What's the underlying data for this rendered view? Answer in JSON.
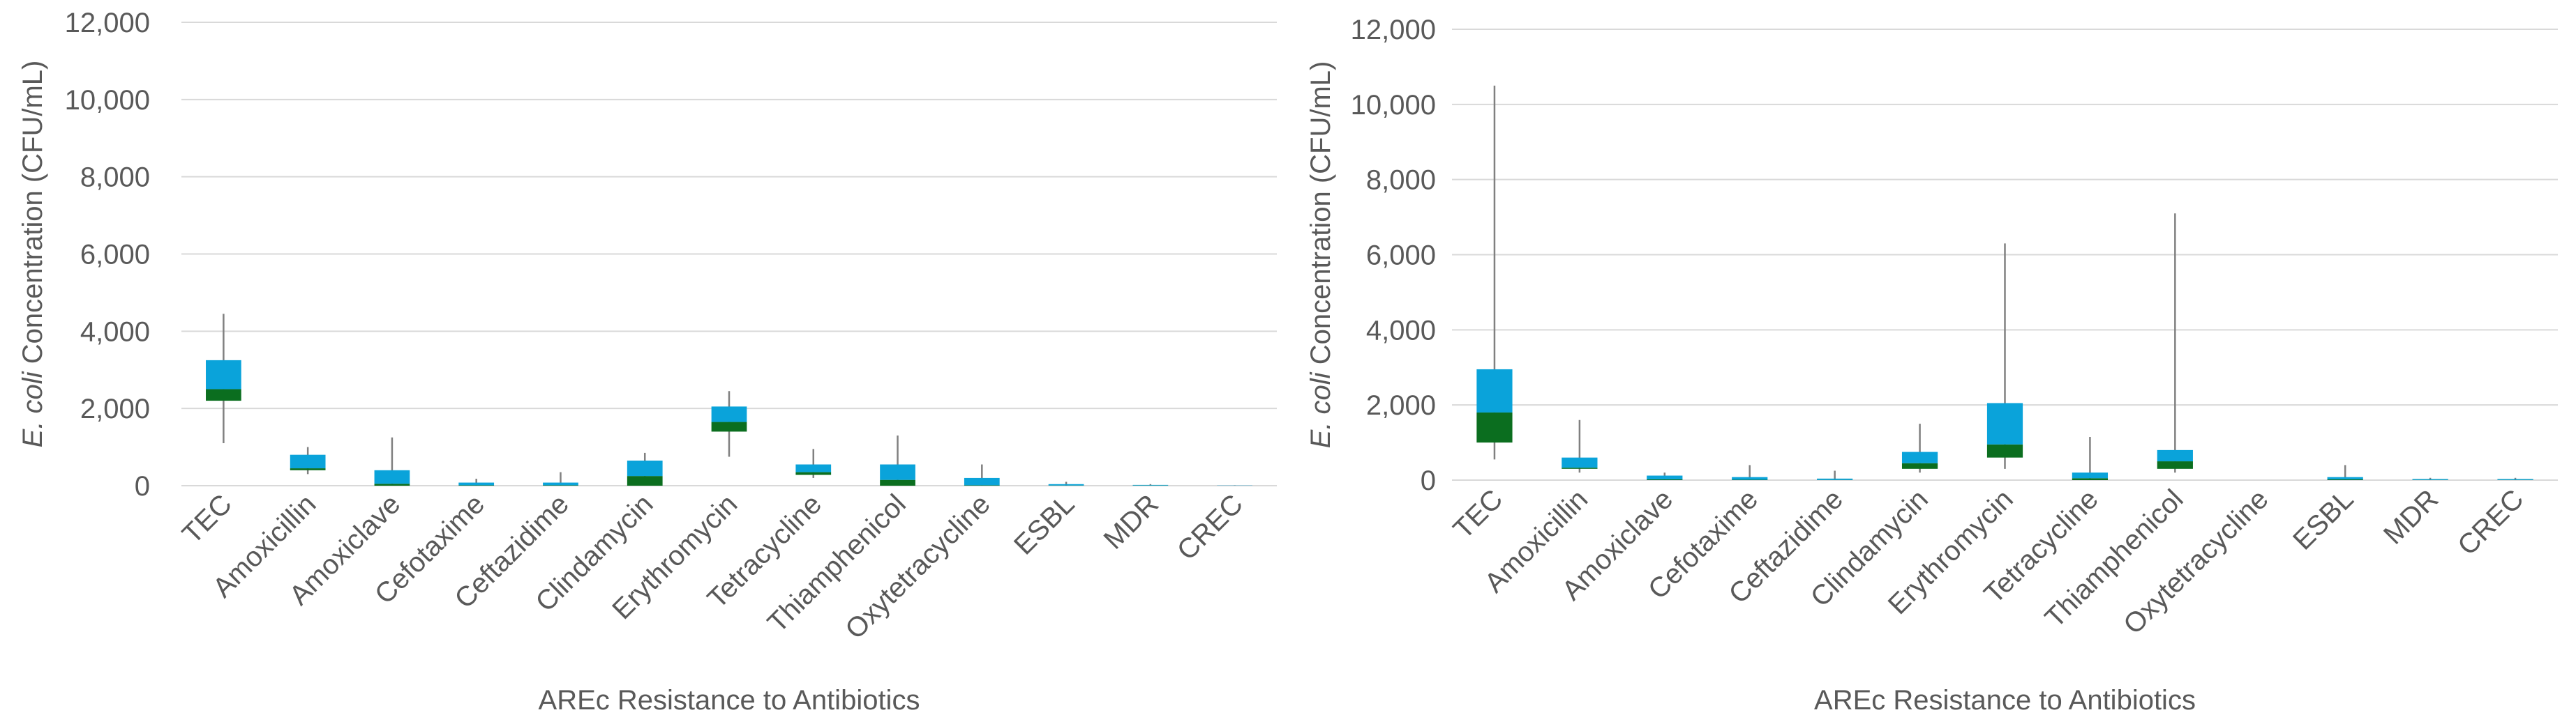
{
  "chart_data": [
    {
      "type": "boxplot",
      "title": "",
      "xlabel": "AREc Resistance to Antibiotics",
      "ylabel_italic": "E. coli",
      "ylabel_rest": " Concentration (CFU/mL)",
      "ylim": [
        0,
        12000
      ],
      "yticks": [
        "0",
        "2,000",
        "4,000",
        "6,000",
        "8,000",
        "10,000",
        "12,000"
      ],
      "ytick_values": [
        0,
        2000,
        4000,
        6000,
        8000,
        10000,
        12000
      ],
      "grid": true,
      "colors": {
        "q1_box": "#0b6e1f",
        "q3_box": "#0aa3da",
        "whisker": "#808080",
        "grid": "#d9d9d9"
      },
      "categories": [
        "TEC",
        "Amoxicillin",
        "Amoxiclave",
        "Cefotaxime",
        "Ceftazidime",
        "Clindamycin",
        "Erythromycin",
        "Tetracycline",
        "Thiamphenicol",
        "Oxytetracycline",
        "ESBL",
        "MDR",
        "CREC"
      ],
      "boxes": [
        {
          "min": 1100,
          "q1": 2200,
          "median": 2500,
          "q3": 3250,
          "max": 4450
        },
        {
          "min": 300,
          "q1": 400,
          "median": 450,
          "q3": 800,
          "max": 1000
        },
        {
          "min": 0,
          "q1": 0,
          "median": 50,
          "q3": 400,
          "max": 1250
        },
        {
          "min": 0,
          "q1": 0,
          "median": 10,
          "q3": 80,
          "max": 180
        },
        {
          "min": 0,
          "q1": 0,
          "median": 10,
          "q3": 80,
          "max": 350
        },
        {
          "min": 0,
          "q1": 0,
          "median": 250,
          "q3": 650,
          "max": 850
        },
        {
          "min": 750,
          "q1": 1400,
          "median": 1650,
          "q3": 2050,
          "max": 2450
        },
        {
          "min": 200,
          "q1": 280,
          "median": 350,
          "q3": 550,
          "max": 950
        },
        {
          "min": 0,
          "q1": 0,
          "median": 150,
          "q3": 550,
          "max": 1300
        },
        {
          "min": 0,
          "q1": 0,
          "median": 10,
          "q3": 200,
          "max": 550
        },
        {
          "min": 0,
          "q1": 0,
          "median": 5,
          "q3": 40,
          "max": 100
        },
        {
          "min": 0,
          "q1": 0,
          "median": 5,
          "q3": 20,
          "max": 40
        },
        {
          "min": 0,
          "q1": 0,
          "median": 0,
          "q3": 5,
          "max": 10
        }
      ]
    },
    {
      "type": "boxplot",
      "title": "",
      "xlabel": "AREc Resistance to Antibiotics",
      "ylabel_italic": "E. coli",
      "ylabel_rest": " Concentration (CFU/mL)",
      "ylim": [
        0,
        12000
      ],
      "yticks": [
        "0",
        "2,000",
        "4,000",
        "6,000",
        "8,000",
        "10,000",
        "12,000"
      ],
      "ytick_values": [
        0,
        2000,
        4000,
        6000,
        8000,
        10000,
        12000
      ],
      "grid": true,
      "colors": {
        "q1_box": "#0b6e1f",
        "q3_box": "#0aa3da",
        "whisker": "#808080",
        "grid": "#d9d9d9"
      },
      "categories": [
        "TEC",
        "Amoxicillin",
        "Amoxiclave",
        "Cefotaxime",
        "Ceftazidime",
        "Clindamycin",
        "Erythromycin",
        "Tetracycline",
        "Thiamphenicol",
        "Oxytetracycline",
        "ESBL",
        "MDR",
        "CREC"
      ],
      "boxes": [
        {
          "min": 550,
          "q1": 1000,
          "median": 1800,
          "q3": 2950,
          "max": 10500
        },
        {
          "min": 200,
          "q1": 300,
          "median": 330,
          "q3": 600,
          "max": 1600
        },
        {
          "min": 0,
          "q1": 0,
          "median": 20,
          "q3": 120,
          "max": 200
        },
        {
          "min": 0,
          "q1": 0,
          "median": 10,
          "q3": 80,
          "max": 400
        },
        {
          "min": 0,
          "q1": 0,
          "median": 5,
          "q3": 40,
          "max": 250
        },
        {
          "min": 200,
          "q1": 300,
          "median": 450,
          "q3": 750,
          "max": 1500
        },
        {
          "min": 300,
          "q1": 600,
          "median": 950,
          "q3": 2050,
          "max": 6300
        },
        {
          "min": 0,
          "q1": 0,
          "median": 50,
          "q3": 200,
          "max": 1150
        },
        {
          "min": 200,
          "q1": 300,
          "median": 500,
          "q3": 800,
          "max": 7100
        },
        {
          "min": 0,
          "q1": 0,
          "median": 0,
          "q3": 0,
          "max": 0
        },
        {
          "min": 0,
          "q1": 0,
          "median": 20,
          "q3": 80,
          "max": 400
        },
        {
          "min": 0,
          "q1": 0,
          "median": 5,
          "q3": 30,
          "max": 60
        },
        {
          "min": 0,
          "q1": 0,
          "median": 5,
          "q3": 30,
          "max": 60
        }
      ]
    }
  ]
}
